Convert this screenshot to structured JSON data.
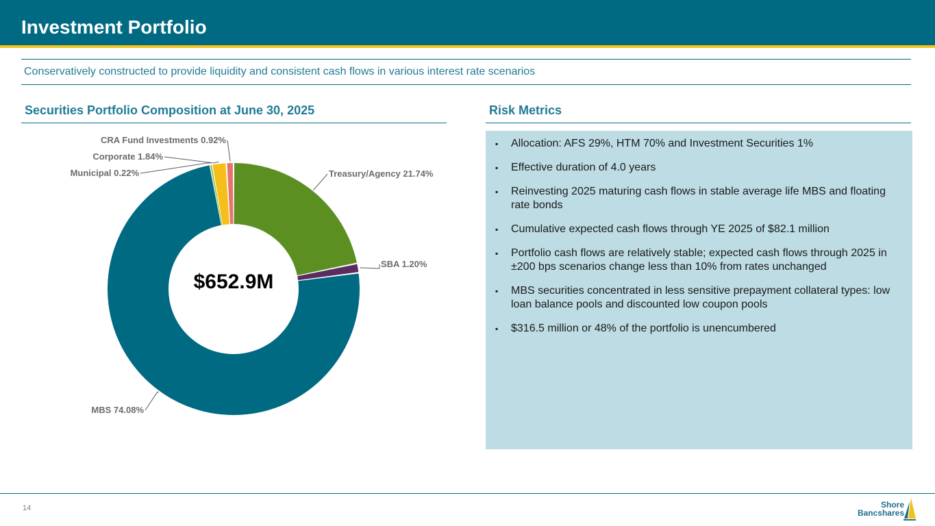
{
  "header": {
    "title": "Investment Portfolio",
    "subtitle": "Conservatively constructed to provide liquidity and consistent cash flows in various interest rate scenarios"
  },
  "left_section": {
    "title": "Securities Portfolio Composition at June 30, 2025"
  },
  "right_section": {
    "title": "Risk Metrics",
    "bullet_glyph": "▪",
    "items": [
      "Allocation: AFS 29%, HTM 70% and Investment Securities 1%",
      "Effective duration of 4.0 years",
      "Reinvesting 2025 maturing cash flows in stable average life MBS and floating rate bonds",
      "Cumulative expected cash flows through YE 2025 of $82.1 million",
      "Portfolio cash flows are relatively stable; expected cash flows through 2025 in ±200 bps scenarios change less than 10% from rates unchanged",
      "MBS securities concentrated in less sensitive prepayment collateral types: low loan balance pools and discounted low coupon pools",
      "$316.5 million or 48% of the portfolio is unencumbered"
    ]
  },
  "chart_data": {
    "type": "pie",
    "donut": true,
    "center_label": "$652.9M",
    "start": "12 o'clock, clockwise",
    "slices": [
      {
        "name": "Treasury/Agency",
        "value": 21.74,
        "label": "Treasury/Agency 21.74%",
        "color": "#5b8f22"
      },
      {
        "name": "SBA",
        "value": 1.2,
        "label": "SBA 1.20%",
        "color": "#5b2d5e"
      },
      {
        "name": "MBS",
        "value": 74.08,
        "label": "MBS 74.08%",
        "color": "#006a82"
      },
      {
        "name": "Municipal",
        "value": 0.22,
        "label": "Municipal 0.22%",
        "color": "#9fc54a"
      },
      {
        "name": "Corporate",
        "value": 1.84,
        "label": "Corporate 1.84%",
        "color": "#f5be1b"
      },
      {
        "name": "CRA Fund Investments",
        "value": 0.92,
        "label": "CRA Fund Investments 0.92%",
        "color": "#e8736a"
      }
    ]
  },
  "footer": {
    "page_number": "14",
    "logo_line1": "Shore",
    "logo_line2": "Bancshares"
  },
  "colors": {
    "brand_teal": "#006a82",
    "accent_gold": "#f2c21b",
    "section_title": "#1f7a96",
    "panel_bg": "#bddce4"
  }
}
